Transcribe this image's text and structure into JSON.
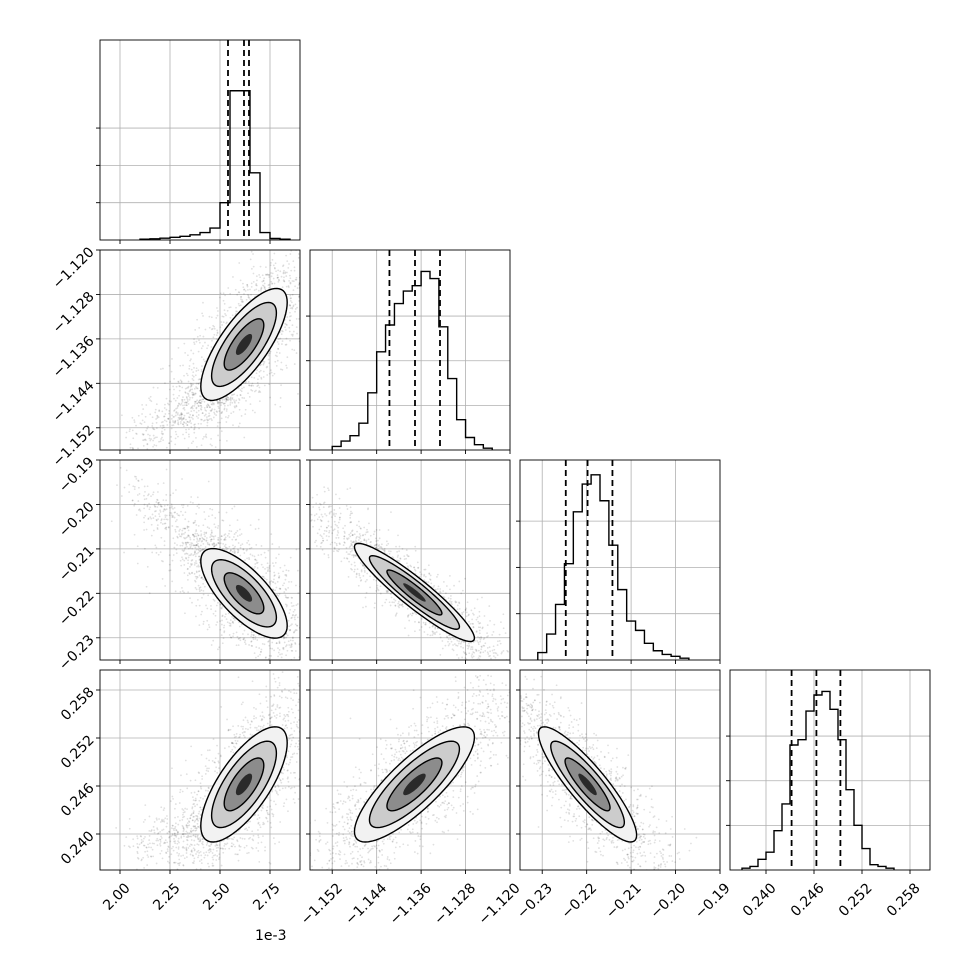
{
  "chart_data": {
    "type": "corner",
    "grid": true,
    "dimensions": [
      {
        "index": 0,
        "range": [
          1.9,
          2.9
        ],
        "ticks": [
          2.0,
          2.25,
          2.5,
          2.75
        ],
        "tick_labels": [
          "2.00",
          "2.25",
          "2.50",
          "2.75"
        ],
        "offset_label": "1e-3",
        "quantiles": [
          2.54,
          2.62,
          2.645
        ],
        "histogram": {
          "bin_edges": [
            2.1,
            2.15,
            2.2,
            2.25,
            2.3,
            2.35,
            2.4,
            2.45,
            2.5,
            2.55,
            2.6,
            2.65,
            2.7,
            2.75,
            2.8,
            2.85
          ],
          "counts": [
            0.005,
            0.008,
            0.012,
            0.018,
            0.025,
            0.035,
            0.05,
            0.08,
            0.25,
            1.0,
            1.0,
            0.45,
            0.05,
            0.01,
            0.005
          ],
          "ylim": [
            0,
            1.34
          ]
        }
      },
      {
        "index": 1,
        "range": [
          -1.156,
          -1.12
        ],
        "ticks": [
          -1.152,
          -1.144,
          -1.136,
          -1.128,
          -1.12
        ],
        "tick_labels": [
          "−1.152",
          "−1.144",
          "−1.136",
          "−1.128",
          "−1.120"
        ],
        "offset_label": "",
        "quantiles": [
          -1.1417,
          -1.1371,
          -1.1326
        ],
        "histogram": {
          "bin_edges": [
            -1.152,
            -1.1504,
            -1.1488,
            -1.1472,
            -1.1456,
            -1.144,
            -1.1424,
            -1.1408,
            -1.1392,
            -1.1376,
            -1.136,
            -1.1344,
            -1.1328,
            -1.1312,
            -1.1296,
            -1.128,
            -1.1264,
            -1.1248,
            -1.1232
          ],
          "counts": [
            0.02,
            0.05,
            0.08,
            0.15,
            0.32,
            0.55,
            0.7,
            0.82,
            0.89,
            0.92,
            1.0,
            0.96,
            0.69,
            0.4,
            0.17,
            0.07,
            0.03,
            0.01
          ],
          "ylim": [
            0,
            1.12
          ]
        }
      },
      {
        "index": 2,
        "range": [
          -0.235,
          -0.19
        ],
        "ticks": [
          -0.23,
          -0.22,
          -0.21,
          -0.2,
          -0.19
        ],
        "tick_labels": [
          "−0.23",
          "−0.22",
          "−0.21",
          "−0.20",
          "−0.19"
        ],
        "offset_label": "",
        "quantiles": [
          -0.2247,
          -0.2198,
          -0.2142
        ],
        "histogram": {
          "bin_edges": [
            -0.231,
            -0.229,
            -0.227,
            -0.225,
            -0.223,
            -0.221,
            -0.219,
            -0.217,
            -0.215,
            -0.213,
            -0.211,
            -0.209,
            -0.207,
            -0.205,
            -0.203,
            -0.201,
            -0.199,
            -0.197
          ],
          "counts": [
            0.04,
            0.14,
            0.3,
            0.52,
            0.8,
            0.95,
            1.0,
            0.86,
            0.62,
            0.38,
            0.21,
            0.16,
            0.09,
            0.05,
            0.03,
            0.02,
            0.01
          ],
          "ylim": [
            0,
            1.08
          ]
        }
      },
      {
        "index": 3,
        "range": [
          0.2355,
          0.2605
        ],
        "ticks": [
          0.24,
          0.246,
          0.252,
          0.258
        ],
        "tick_labels": [
          "0.240",
          "0.246",
          "0.252",
          "0.258"
        ],
        "offset_label": "",
        "quantiles": [
          0.2432,
          0.2463,
          0.2493
        ],
        "histogram": {
          "bin_edges": [
            0.237,
            0.238,
            0.239,
            0.24,
            0.241,
            0.242,
            0.243,
            0.244,
            0.245,
            0.246,
            0.247,
            0.248,
            0.249,
            0.25,
            0.251,
            0.252,
            0.253,
            0.254,
            0.255,
            0.256
          ],
          "counts": [
            0.01,
            0.02,
            0.06,
            0.1,
            0.22,
            0.37,
            0.7,
            0.73,
            0.89,
            0.98,
            1.0,
            0.9,
            0.73,
            0.45,
            0.25,
            0.12,
            0.03,
            0.02,
            0.01
          ],
          "ylim": [
            0,
            1.12
          ]
        }
      }
    ],
    "pairs": [
      {
        "row": 1,
        "col": 0,
        "mean": [
          2.62,
          -1.137
        ],
        "std": [
          0.09,
          0.0042
        ],
        "corr": 0.75,
        "tail": {
          "from": [
            2.55,
            -1.145
          ],
          "to": [
            2.05,
            -1.154
          ],
          "spread": 0.0022
        }
      },
      {
        "row": 2,
        "col": 0,
        "mean": [
          2.62,
          -0.22
        ],
        "std": [
          0.09,
          0.0042
        ],
        "corr": -0.72,
        "tail": {
          "from": [
            2.55,
            -0.215
          ],
          "to": [
            2.05,
            -0.196
          ],
          "spread": 0.0022
        }
      },
      {
        "row": 3,
        "col": 0,
        "mean": [
          2.62,
          0.2462
        ],
        "std": [
          0.09,
          0.003
        ],
        "corr": 0.72,
        "tail": {
          "from": [
            2.55,
            0.242
          ],
          "to": [
            2.05,
            0.238
          ],
          "spread": 0.0015
        }
      },
      {
        "row": 2,
        "col": 1,
        "mean": [
          -1.1372,
          -0.2198
        ],
        "std": [
          0.0045,
          0.0046
        ],
        "corr": -0.93,
        "tail": null
      },
      {
        "row": 3,
        "col": 1,
        "mean": [
          -1.1372,
          0.2462
        ],
        "std": [
          0.0045,
          0.003
        ],
        "corr": 0.82,
        "tail": null
      },
      {
        "row": 3,
        "col": 2,
        "mean": [
          -0.2198,
          0.2462
        ],
        "std": [
          0.0046,
          0.003
        ],
        "corr": -0.88,
        "tail": null
      }
    ]
  }
}
